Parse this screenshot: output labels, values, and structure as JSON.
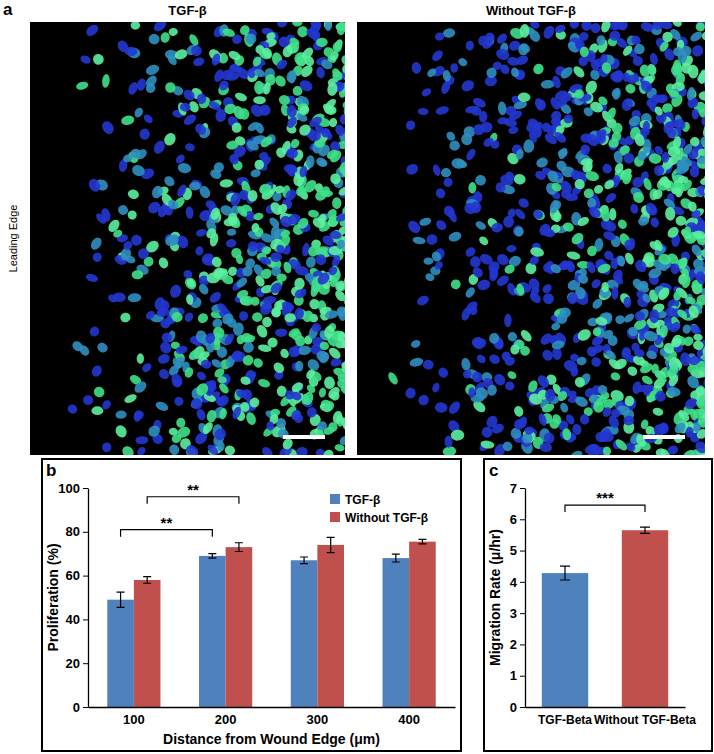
{
  "panel_labels": [
    "a",
    "b",
    "c"
  ],
  "image_panel": {
    "titles": [
      "TGF-β",
      "Without TGF-β"
    ],
    "side_label": "Leading Edge"
  },
  "chart_data": [
    {
      "type": "bar",
      "xlabel": "Distance from Wound Edge (μm)",
      "ylabel": "Proliferation (%)",
      "categories": [
        "100",
        "200",
        "300",
        "400"
      ],
      "series": [
        {
          "name": "TGF-β",
          "color": "#4f81bd",
          "values": [
            49,
            69,
            67,
            68
          ],
          "errors": [
            3.5,
            1,
            1.5,
            1.8
          ]
        },
        {
          "name": "Without TGF-β",
          "color": "#c0504d",
          "values": [
            58,
            73,
            74,
            75.5
          ],
          "errors": [
            1.5,
            2,
            3.5,
            1
          ]
        }
      ],
      "ylim": [
        0,
        100
      ],
      "yticks": [
        0,
        20,
        40,
        60,
        80,
        100
      ],
      "grid": false,
      "legend": "upper right",
      "annotations": [
        {
          "text": "**",
          "series": "TGF-β",
          "categories": [
            "100",
            "200"
          ]
        },
        {
          "text": "**",
          "series": "Without TGF-β",
          "categories": [
            "100",
            "200"
          ]
        }
      ]
    },
    {
      "type": "bar",
      "ylabel": "Migration Rate (μ/hr)",
      "categories": [
        "TGF-Beta",
        "Without TGF-Beta"
      ],
      "values": [
        4.28,
        5.65
      ],
      "errors": [
        0.22,
        0.1
      ],
      "colors": [
        "#4f81bd",
        "#c0504d"
      ],
      "ylim": [
        0,
        7
      ],
      "yticks": [
        0,
        1,
        2,
        3,
        4,
        5,
        6,
        7
      ],
      "grid": false,
      "annotations": [
        {
          "text": "***",
          "categories": [
            "TGF-Beta",
            "Without TGF-Beta"
          ]
        }
      ]
    }
  ]
}
